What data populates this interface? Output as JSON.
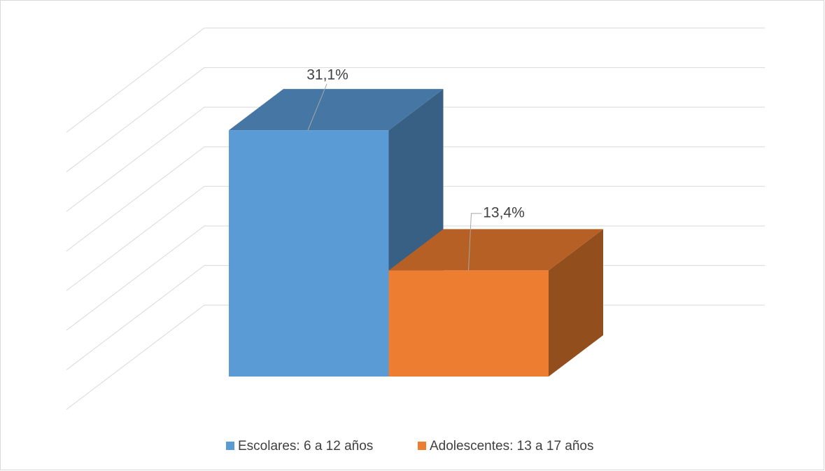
{
  "chart_data": {
    "type": "bar3d",
    "categories": [
      null
    ],
    "series": [
      {
        "name": "Escolares: 6 a 12 años",
        "color": "#5b9bd5",
        "values": [
          31.1
        ],
        "value_labels": [
          "31,1%"
        ]
      },
      {
        "name": "Adolescentes: 13 a 17 años",
        "color": "#ed7d31",
        "values": [
          13.4
        ],
        "value_labels": [
          "13,4%"
        ]
      }
    ],
    "ylim": [
      0,
      35
    ],
    "yticks": [
      0,
      5,
      10,
      15,
      20,
      25,
      30,
      35
    ],
    "grid": true,
    "legend": "bottom"
  }
}
